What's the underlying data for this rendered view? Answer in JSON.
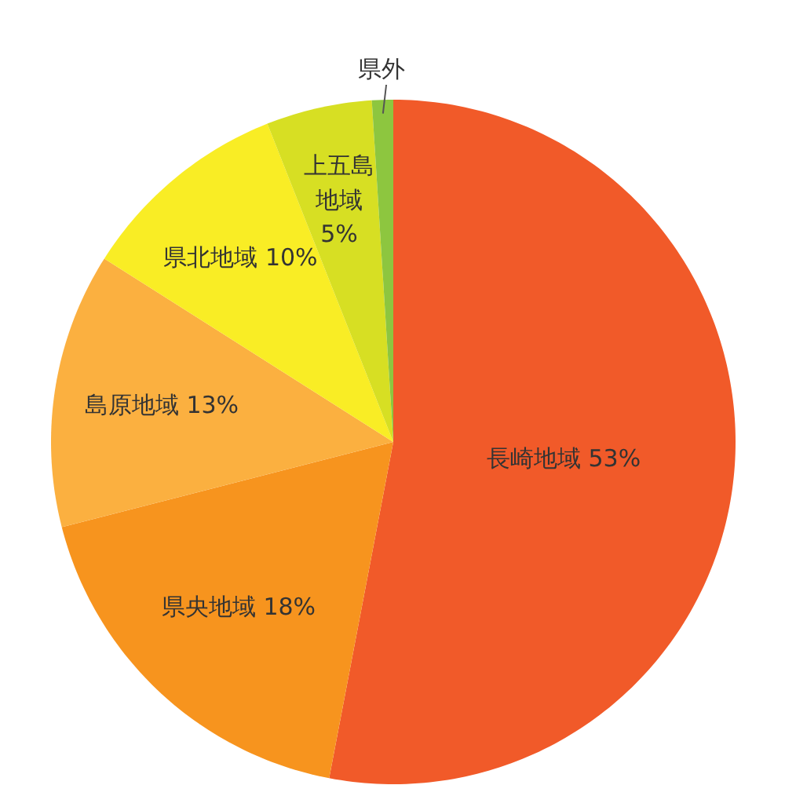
{
  "chart_data": {
    "type": "pie",
    "categories": [
      "長崎地域",
      "県央地域",
      "島原地域",
      "県北地域",
      "上五島地域",
      "県外"
    ],
    "values": [
      53,
      18,
      13,
      10,
      5,
      1
    ],
    "value_labels": [
      "53%",
      "18%",
      "13%",
      "10%",
      "5%",
      null
    ],
    "colors": [
      "#f15a29",
      "#f7941e",
      "#fbb040",
      "#f9ed25",
      "#d7df23",
      "#8dc63f"
    ]
  }
}
